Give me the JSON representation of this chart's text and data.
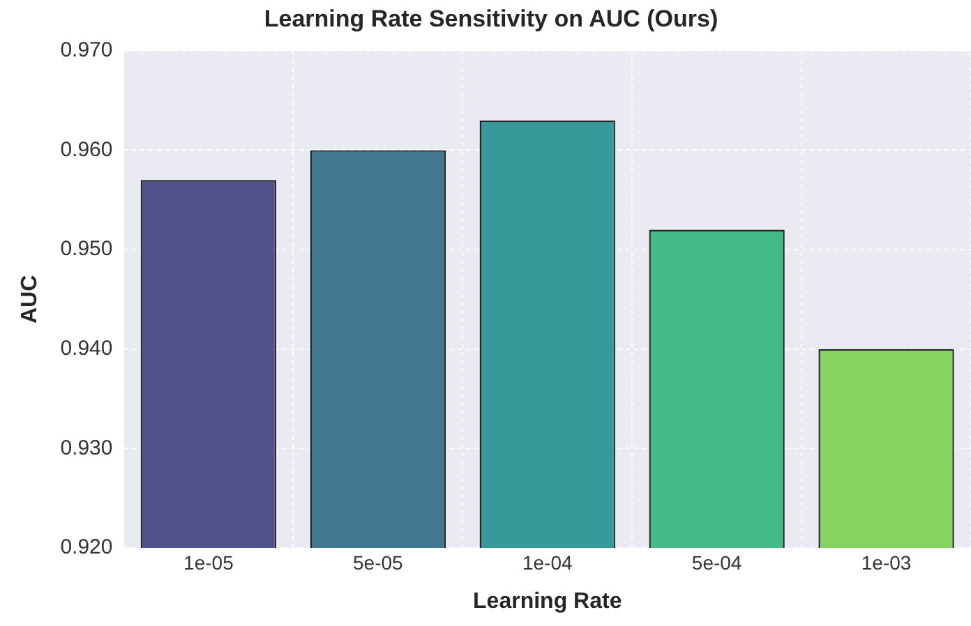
{
  "chart_data": {
    "type": "bar",
    "title": "Learning Rate Sensitivity on AUC (Ours)",
    "xlabel": "Learning Rate",
    "ylabel": "AUC",
    "categories": [
      "1e-05",
      "5e-05",
      "1e-04",
      "5e-04",
      "1e-03"
    ],
    "values": [
      0.957,
      0.96,
      0.963,
      0.952,
      0.94
    ],
    "colors": [
      "#52508d",
      "#41788f",
      "#36999a",
      "#43bb87",
      "#85d462"
    ],
    "ylim": [
      0.92,
      0.97
    ],
    "yticks": [
      {
        "value": 0.92,
        "label": "0.920"
      },
      {
        "value": 0.93,
        "label": "0.930"
      },
      {
        "value": 0.94,
        "label": "0.940"
      },
      {
        "value": 0.95,
        "label": "0.950"
      },
      {
        "value": 0.96,
        "label": "0.960"
      },
      {
        "value": 0.97,
        "label": "0.970"
      }
    ],
    "grid": true
  }
}
